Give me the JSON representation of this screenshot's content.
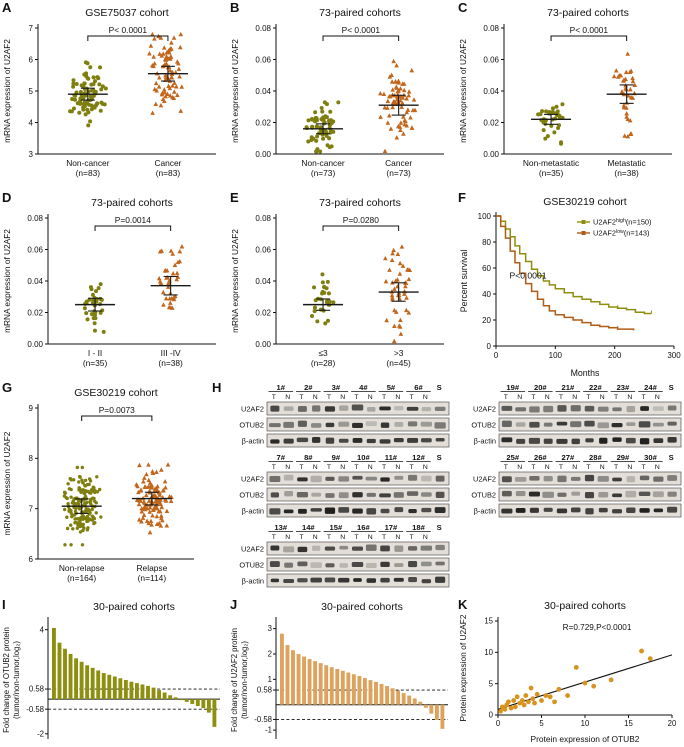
{
  "letters": {
    "a": "A",
    "b": "B",
    "c": "C",
    "d": "D",
    "e": "E",
    "f": "F",
    "g": "G",
    "h": "H",
    "i": "I",
    "j": "J",
    "k": "K"
  },
  "chart_data": [
    {
      "id": "A",
      "type": "scatter-groups",
      "title": "GSE75037 cohort",
      "p_label": "P< 0.0001",
      "ylabel": "mRNA expression of U2AF2",
      "ylim": [
        3,
        7
      ],
      "yticks": [
        3,
        4,
        5,
        6,
        7
      ],
      "ydec": 0,
      "seed": 11,
      "groups": [
        {
          "label": "Non-cancer",
          "n_label": "(n=83)",
          "n": 83,
          "mean": 4.9,
          "sd": 0.42,
          "color": "#7f7f10",
          "marker": "circle"
        },
        {
          "label": "Cancer",
          "n_label": "(n=83)",
          "n": 83,
          "mean": 5.55,
          "sd": 0.52,
          "color": "#c2661c",
          "marker": "triangle"
        }
      ]
    },
    {
      "id": "B",
      "type": "scatter-groups",
      "title": "73-paired cohorts",
      "p_label": "P< 0.0001",
      "ylabel": "mRNA expression of U2AF2",
      "ylim": [
        0,
        0.08
      ],
      "yticks": [
        0,
        0.02,
        0.04,
        0.06,
        0.08
      ],
      "ydec": 2,
      "seed": 22,
      "ml": 48,
      "groups": [
        {
          "label": "Non-cancer",
          "n_label": "(n=73)",
          "n": 73,
          "mean": 0.016,
          "sd": 0.007,
          "color": "#7f7f10",
          "marker": "circle"
        },
        {
          "label": "Cancer",
          "n_label": "(n=73)",
          "n": 73,
          "mean": 0.031,
          "sd": 0.014,
          "color": "#c2661c",
          "marker": "triangle"
        }
      ]
    },
    {
      "id": "C",
      "type": "scatter-groups",
      "title": "73-paired cohorts",
      "p_label": "P< 0.0001",
      "ylabel": "mRNA expression of U2AF2",
      "ylim": [
        0,
        0.08
      ],
      "yticks": [
        0,
        0.02,
        0.04,
        0.06,
        0.08
      ],
      "ydec": 2,
      "seed": 33,
      "ml": 48,
      "groups": [
        {
          "label": "Non-metastatic",
          "n_label": "(n=35)",
          "n": 35,
          "mean": 0.022,
          "sd": 0.007,
          "color": "#7f7f10",
          "marker": "circle"
        },
        {
          "label": "Metastatic",
          "n_label": "(n=38)",
          "n": 38,
          "mean": 0.038,
          "sd": 0.013,
          "color": "#c2661c",
          "marker": "triangle"
        }
      ]
    },
    {
      "id": "D",
      "type": "scatter-groups",
      "title": "73-paired cohorts",
      "p_label": "P=0.0014",
      "ylabel": "mRNA expression of U2AF2",
      "ylim": [
        0,
        0.08
      ],
      "yticks": [
        0,
        0.02,
        0.04,
        0.06,
        0.08
      ],
      "ydec": 2,
      "seed": 44,
      "ml": 48,
      "groups": [
        {
          "label": "I - II",
          "n_label": "(n=35)",
          "n": 35,
          "mean": 0.025,
          "sd": 0.009,
          "color": "#7f7f10",
          "marker": "circle"
        },
        {
          "label": "III -IV",
          "n_label": "(n=38)",
          "n": 38,
          "mean": 0.037,
          "sd": 0.013,
          "color": "#c2661c",
          "marker": "triangle"
        }
      ]
    },
    {
      "id": "E",
      "type": "scatter-groups",
      "title": "73-paired cohorts",
      "p_label": "P=0.0280",
      "ylabel": "mRNA expression of U2AF2",
      "ylim": [
        0,
        0.08
      ],
      "yticks": [
        0,
        0.02,
        0.04,
        0.06,
        0.08
      ],
      "ydec": 2,
      "seed": 55,
      "ml": 48,
      "groups": [
        {
          "label": "≤3",
          "n_label": "(n=28)",
          "n": 28,
          "mean": 0.025,
          "sd": 0.008,
          "color": "#7f7f10",
          "marker": "circle"
        },
        {
          "label": ">3",
          "n_label": "(n=45)",
          "n": 45,
          "mean": 0.033,
          "sd": 0.013,
          "color": "#c2661c",
          "marker": "triangle"
        }
      ]
    },
    {
      "id": "F",
      "type": "survival",
      "title": "GSE30219 cohort",
      "p_label": "P<0.0001",
      "xlabel": "Months",
      "ylabel": "Percent survival",
      "xlim": [
        0,
        300
      ],
      "ylim": [
        0,
        100
      ],
      "xticks": [
        0,
        100,
        200,
        300
      ],
      "yticks": [
        0,
        20,
        40,
        60,
        80,
        100
      ],
      "series": [
        {
          "pre": "U2AF2",
          "sup": "high",
          "post": "(n=150)",
          "color": "#8f8f0e",
          "points": [
            [
              0,
              100
            ],
            [
              8,
              96
            ],
            [
              16,
              90
            ],
            [
              24,
              84
            ],
            [
              32,
              77
            ],
            [
              40,
              71
            ],
            [
              50,
              65
            ],
            [
              60,
              59
            ],
            [
              70,
              54
            ],
            [
              80,
              50
            ],
            [
              90,
              47
            ],
            [
              100,
              44
            ],
            [
              115,
              41
            ],
            [
              130,
              38
            ],
            [
              145,
              36
            ],
            [
              160,
              34
            ],
            [
              175,
              32
            ],
            [
              190,
              30
            ],
            [
              205,
              29
            ],
            [
              220,
              28
            ],
            [
              235,
              26
            ],
            [
              250,
              25
            ],
            [
              262,
              25
            ]
          ]
        },
        {
          "pre": "U2AF2",
          "sup": "low",
          "post": "(n=143)",
          "color": "#b05c16",
          "points": [
            [
              0,
              100
            ],
            [
              8,
              92
            ],
            [
              16,
              83
            ],
            [
              24,
              73
            ],
            [
              32,
              64
            ],
            [
              40,
              56
            ],
            [
              50,
              48
            ],
            [
              60,
              42
            ],
            [
              70,
              36
            ],
            [
              80,
              31
            ],
            [
              90,
              27
            ],
            [
              100,
              24
            ],
            [
              115,
              22
            ],
            [
              130,
              20
            ],
            [
              145,
              18
            ],
            [
              160,
              16
            ],
            [
              175,
              15
            ],
            [
              190,
              14
            ],
            [
              205,
              13
            ],
            [
              220,
              13
            ],
            [
              232,
              12
            ]
          ]
        }
      ]
    },
    {
      "id": "G",
      "type": "scatter-groups",
      "title": "GSE30219 cohort",
      "p_label": "P=0.0073",
      "ylabel": "mRNA expression of U2AF2",
      "ylim": [
        6,
        9
      ],
      "yticks": [
        6,
        7,
        8,
        9
      ],
      "ydec": 0,
      "seed": 77,
      "groups": [
        {
          "label": "Non-relapse",
          "n_label": "(n=164)",
          "n": 164,
          "mean": 7.05,
          "sd": 0.32,
          "color": "#7f7f10",
          "marker": "circle"
        },
        {
          "label": "Relapse",
          "n_label": "(n=114)",
          "n": 114,
          "mean": 7.2,
          "sd": 0.28,
          "color": "#c2661c",
          "marker": "triangle"
        }
      ]
    },
    {
      "id": "I",
      "type": "waterfall",
      "title": "30-paired cohorts",
      "ylabel1": "Fold change of OTUB2 protein",
      "ylabel2": "(tumor/non-tumor,log₂)",
      "ylim": [
        -2.3,
        4.5
      ],
      "yticks": [
        4,
        0.58,
        -0.58,
        -2
      ],
      "ref_lines": [
        0.58,
        -0.58
      ],
      "color": "#8f8f0e",
      "values": [
        4.1,
        3.25,
        2.9,
        2.6,
        2.35,
        2.15,
        1.95,
        1.8,
        1.65,
        1.5,
        1.4,
        1.3,
        1.2,
        1.1,
        1.0,
        0.92,
        0.84,
        0.76,
        0.66,
        0.52,
        0.38,
        0.22,
        0.1,
        -0.06,
        -0.16,
        -0.28,
        -0.4,
        -0.52,
        -0.78,
        -1.6
      ]
    },
    {
      "id": "J",
      "type": "waterfall",
      "title": "30-paired cohorts",
      "ylabel1": "Fold change of U2AF2 protein",
      "ylabel2": "(tumor/non-tumor,log₂)",
      "ylim": [
        -1.35,
        3.3
      ],
      "yticks": [
        3,
        2,
        1,
        0.58,
        -0.58,
        -1
      ],
      "ref_lines": [
        0.58,
        -0.58
      ],
      "color": "#dda35c",
      "values": [
        2.8,
        2.35,
        2.15,
        2.0,
        1.9,
        1.8,
        1.72,
        1.64,
        1.56,
        1.48,
        1.41,
        1.34,
        1.27,
        1.2,
        1.13,
        1.05,
        0.97,
        0.9,
        0.82,
        0.74,
        0.65,
        0.56,
        0.46,
        0.36,
        0.25,
        0.12,
        -0.12,
        -0.35,
        -0.6,
        -0.95
      ]
    },
    {
      "id": "K",
      "type": "scatter-xy",
      "title": "30-paired cohorts",
      "annotation": "R=0.729,P<0.0001",
      "xlabel": "Protein expression of OTUB2",
      "ylabel": "Protein expression of U2AF2",
      "xlim": [
        0,
        20
      ],
      "ylim": [
        0,
        15
      ],
      "xticks": [
        0,
        5,
        10,
        15,
        20
      ],
      "yticks": [
        0,
        5,
        10,
        15
      ],
      "color": "#d8921f",
      "points": [
        [
          0.3,
          0.6
        ],
        [
          0.5,
          1.3
        ],
        [
          0.8,
          0.9
        ],
        [
          1.0,
          1.6
        ],
        [
          1.2,
          2.1
        ],
        [
          1.5,
          1.1
        ],
        [
          1.8,
          2.3
        ],
        [
          2.0,
          1.3
        ],
        [
          2.2,
          2.9
        ],
        [
          2.5,
          1.9
        ],
        [
          2.8,
          2.3
        ],
        [
          3.0,
          1.6
        ],
        [
          3.2,
          3.1
        ],
        [
          3.5,
          2.1
        ],
        [
          3.8,
          4.3
        ],
        [
          4.0,
          2.6
        ],
        [
          4.2,
          1.9
        ],
        [
          4.5,
          3.3
        ],
        [
          5.0,
          2.3
        ],
        [
          5.5,
          3.1
        ],
        [
          6.0,
          2.9
        ],
        [
          6.5,
          2.1
        ],
        [
          7.0,
          4.1
        ],
        [
          8.0,
          3.1
        ],
        [
          9.0,
          7.6
        ],
        [
          10.0,
          5.1
        ],
        [
          11.0,
          4.6
        ],
        [
          13.0,
          5.6
        ],
        [
          16.5,
          10.2
        ],
        [
          17.5,
          9.0
        ]
      ],
      "fit_line": {
        "x1": 0,
        "y1": 0.9,
        "x2": 20,
        "y2": 9.6
      }
    }
  ],
  "blots": {
    "row_labels": [
      "U2AF2",
      "OTUB2",
      "β-actin"
    ],
    "pair_labels": [
      "T",
      "N"
    ],
    "s_label": "S",
    "blocks": [
      {
        "samples": [
          "1#",
          "2#",
          "3#",
          "4#",
          "5#",
          "6#"
        ]
      },
      {
        "samples": [
          "7#",
          "8#",
          "9#",
          "10#",
          "11#",
          "12#"
        ]
      },
      {
        "samples": [
          "13#",
          "14#",
          "15#",
          "16#",
          "17#",
          "18#"
        ]
      },
      {
        "samples": [
          "19#",
          "20#",
          "21#",
          "22#",
          "23#",
          "24#"
        ]
      },
      {
        "samples": [
          "25#",
          "26#",
          "27#",
          "28#",
          "29#",
          "30#"
        ]
      }
    ]
  }
}
